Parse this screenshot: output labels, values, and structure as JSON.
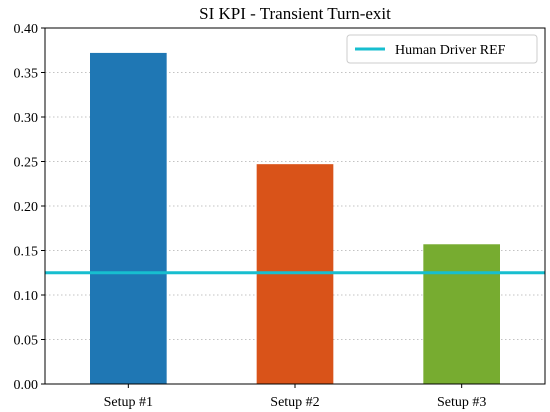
{
  "chart_data": {
    "type": "bar",
    "title": "SI KPI - Transient Turn-exit",
    "xlabel": "",
    "ylabel": "",
    "categories": [
      "Setup #1",
      "Setup #2",
      "Setup #3"
    ],
    "values": [
      0.372,
      0.247,
      0.157
    ],
    "bar_colors": [
      "#1f77b4",
      "#d95319",
      "#77ac30"
    ],
    "ylim": [
      0.0,
      0.4
    ],
    "yticks": [
      "0.00",
      "0.05",
      "0.10",
      "0.15",
      "0.20",
      "0.25",
      "0.30",
      "0.35",
      "0.40"
    ],
    "grid": "horizontal dotted",
    "reference_line": {
      "name": "Human Driver REF",
      "value": 0.125,
      "color": "#17becf"
    },
    "legend": {
      "placement": "top-right",
      "entries": [
        "Human Driver REF"
      ]
    }
  }
}
